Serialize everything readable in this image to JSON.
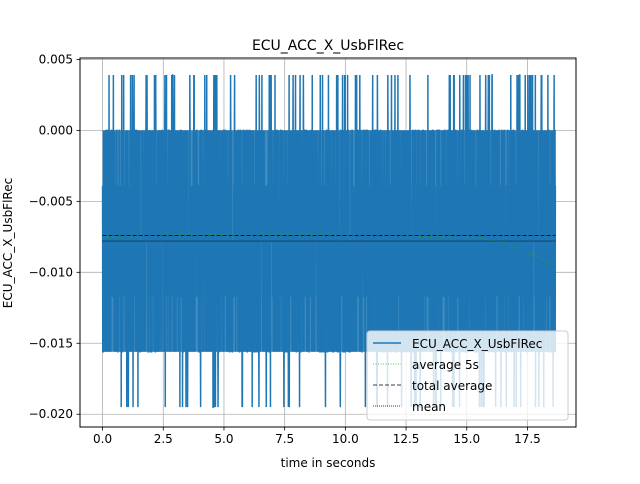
{
  "chart_data": {
    "type": "line",
    "title": "ECU_ACC_X_UsbFlRec",
    "xlabel": "time in seconds",
    "ylabel": "ECU_ACC_X_UsbFlRec",
    "xlim": [
      -0.93,
      19.5
    ],
    "ylim": [
      -0.0209,
      0.0051
    ],
    "xticks": [
      0.0,
      2.5,
      5.0,
      7.5,
      10.0,
      12.5,
      15.0,
      17.5
    ],
    "xtick_labels": [
      "0.0",
      "2.5",
      "5.0",
      "7.5",
      "10.0",
      "12.5",
      "15.0",
      "17.5"
    ],
    "yticks": [
      -0.02,
      -0.015,
      -0.01,
      -0.005,
      0.0,
      0.005
    ],
    "ytick_labels": [
      "−0.020",
      "−0.015",
      "−0.010",
      "−0.005",
      "0.000",
      "0.005"
    ],
    "grid": true,
    "legend_position": "lower-right",
    "signal": {
      "x_range": [
        0.0,
        18.65
      ],
      "levels": [
        0.0039,
        0.0,
        -0.0039,
        -0.0078,
        -0.0117,
        -0.0156,
        -0.0195
      ],
      "dense_band": [
        -0.0156,
        0.0
      ]
    },
    "series": [
      {
        "name": "ECU_ACC_X_UsbFlRec",
        "color": "#1f77b4",
        "style": "solid"
      },
      {
        "name": "average 5s",
        "color": "#2ca02c",
        "style": "dotted",
        "x": [
          0.0,
          2.0,
          4.0,
          6.0,
          8.0,
          10.0,
          12.0,
          14.0,
          15.5,
          16.5,
          17.5,
          18.65
        ],
        "y": [
          -0.0075,
          -0.0074,
          -0.0073,
          -0.0074,
          -0.0073,
          -0.0074,
          -0.0074,
          -0.0075,
          -0.0076,
          -0.0079,
          -0.0086,
          -0.0095
        ]
      },
      {
        "name": "total average",
        "color": "#000000",
        "style": "dashed",
        "x": [
          0.0,
          18.65
        ],
        "y": [
          -0.0074,
          -0.0074
        ]
      },
      {
        "name": "mean",
        "color": "#000000",
        "style": "dotted",
        "x": [
          0.0,
          18.65
        ],
        "y": [
          -0.0078,
          -0.0078
        ]
      }
    ]
  }
}
